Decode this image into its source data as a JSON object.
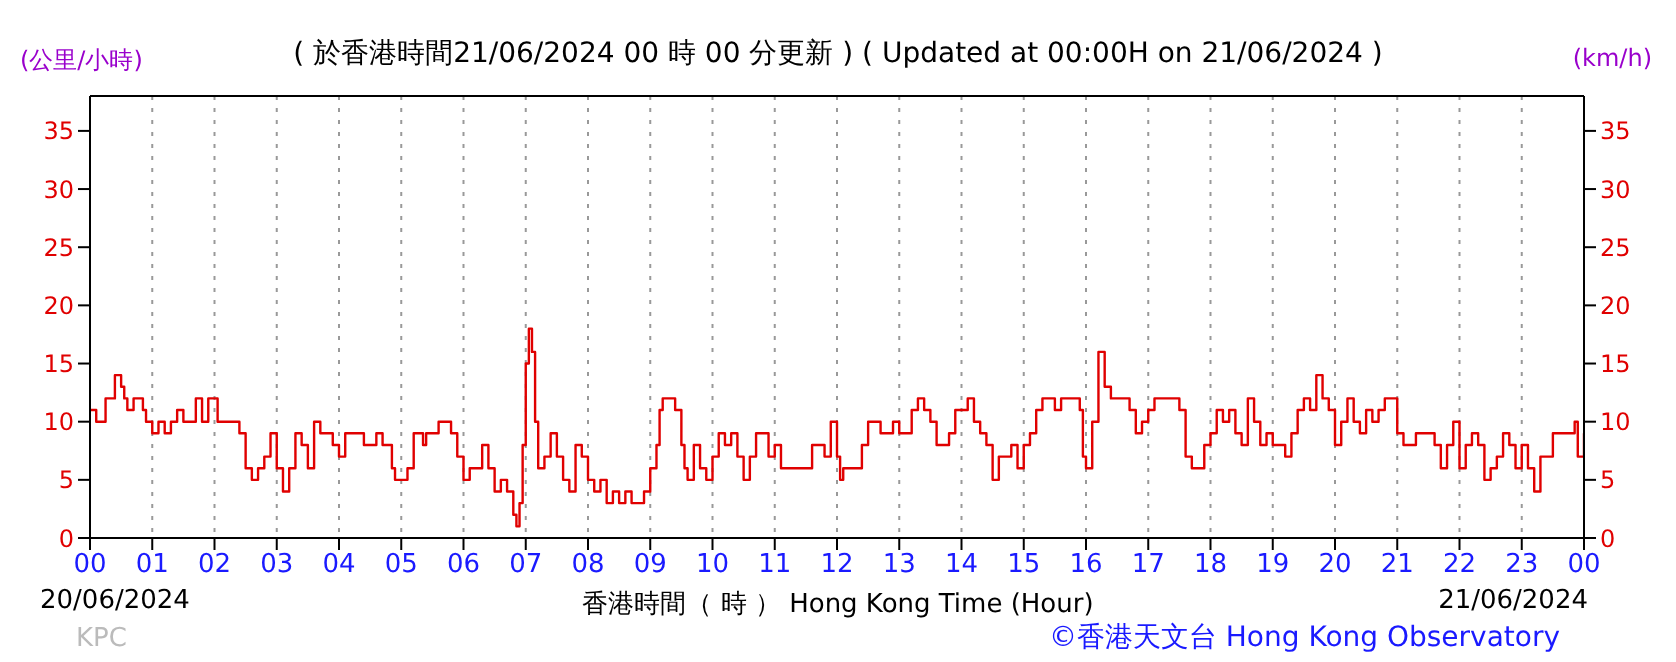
{
  "chart_data": {
    "type": "step",
    "title": "( 於香港時間21/06/2024 00 時 00 分更新 ) ( Updated at 00:00H on 21/06/2024 )",
    "xlabel": "香港時間（ 時 ） Hong Kong Time (Hour)",
    "ylabel": "(公里/小時)",
    "y2label": "(km/h)",
    "annotations": [
      "20/06/2024",
      "21/06/2024",
      "KPC",
      "©香港天文台 Hong Kong Observatory"
    ],
    "xlim": [
      0,
      24
    ],
    "xticks": [
      {
        "value": 0,
        "label": "00"
      },
      {
        "value": 1,
        "label": "01"
      },
      {
        "value": 2,
        "label": "02"
      },
      {
        "value": 3,
        "label": "03"
      },
      {
        "value": 4,
        "label": "04"
      },
      {
        "value": 5,
        "label": "05"
      },
      {
        "value": 6,
        "label": "06"
      },
      {
        "value": 7,
        "label": "07"
      },
      {
        "value": 8,
        "label": "08"
      },
      {
        "value": 9,
        "label": "09"
      },
      {
        "value": 10,
        "label": "10"
      },
      {
        "value": 11,
        "label": "11"
      },
      {
        "value": 12,
        "label": "12"
      },
      {
        "value": 13,
        "label": "13"
      },
      {
        "value": 14,
        "label": "14"
      },
      {
        "value": 15,
        "label": "15"
      },
      {
        "value": 16,
        "label": "16"
      },
      {
        "value": 17,
        "label": "17"
      },
      {
        "value": 18,
        "label": "18"
      },
      {
        "value": 19,
        "label": "19"
      },
      {
        "value": 20,
        "label": "20"
      },
      {
        "value": 21,
        "label": "21"
      },
      {
        "value": 22,
        "label": "22"
      },
      {
        "value": 23,
        "label": "23"
      },
      {
        "value": 24,
        "label": "00"
      }
    ],
    "ylim": [
      0,
      38
    ],
    "yticks": [
      0,
      5,
      10,
      15,
      20,
      25,
      30,
      35
    ],
    "y2lim": [
      0,
      38
    ],
    "y2ticks": [
      0,
      5,
      10,
      15,
      20,
      25,
      30,
      35
    ],
    "grid": true,
    "series": [
      {
        "color": "#e00000",
        "x": [
          0,
          0.1,
          0.25,
          0.35,
          0.4,
          0.5,
          0.55,
          0.6,
          0.7,
          0.85,
          0.9,
          1.0,
          1.1,
          1.2,
          1.3,
          1.4,
          1.5,
          1.6,
          1.7,
          1.8,
          1.9,
          2.0,
          2.05,
          2.2,
          2.3,
          2.4,
          2.5,
          2.6,
          2.7,
          2.8,
          2.9,
          3.0,
          3.1,
          3.2,
          3.3,
          3.4,
          3.5,
          3.6,
          3.7,
          3.9,
          4.0,
          4.1,
          4.3,
          4.4,
          4.6,
          4.7,
          4.85,
          4.9,
          5.0,
          5.1,
          5.2,
          5.35,
          5.4,
          5.5,
          5.6,
          5.7,
          5.8,
          5.9,
          6.0,
          6.1,
          6.2,
          6.3,
          6.4,
          6.5,
          6.6,
          6.7,
          6.8,
          6.85,
          6.9,
          6.95,
          7.0,
          7.05,
          7.1,
          7.15,
          7.2,
          7.3,
          7.4,
          7.5,
          7.6,
          7.7,
          7.8,
          7.9,
          8.0,
          8.1,
          8.2,
          8.3,
          8.4,
          8.5,
          8.6,
          8.7,
          8.9,
          9.0,
          9.1,
          9.15,
          9.2,
          9.3,
          9.4,
          9.5,
          9.55,
          9.6,
          9.7,
          9.8,
          9.9,
          10.0,
          10.1,
          10.2,
          10.3,
          10.4,
          10.5,
          10.6,
          10.7,
          10.8,
          10.9,
          11.0,
          11.1,
          11.3,
          11.5,
          11.6,
          11.7,
          11.8,
          11.9,
          12.0,
          12.05,
          12.1,
          12.3,
          12.4,
          12.5,
          12.7,
          12.9,
          13.0,
          13.2,
          13.3,
          13.4,
          13.5,
          13.6,
          13.7,
          13.8,
          13.9,
          14.0,
          14.1,
          14.2,
          14.3,
          14.4,
          14.5,
          14.6,
          14.7,
          14.8,
          14.9,
          15.0,
          15.1,
          15.2,
          15.3,
          15.5,
          15.6,
          15.8,
          15.9,
          15.95,
          16.0,
          16.1,
          16.2,
          16.3,
          16.4,
          16.6,
          16.7,
          16.8,
          16.9,
          17.0,
          17.1,
          17.4,
          17.5,
          17.6,
          17.7,
          17.8,
          17.9,
          18.0,
          18.1,
          18.2,
          18.3,
          18.4,
          18.5,
          18.6,
          18.7,
          18.8,
          18.9,
          19.0,
          19.1,
          19.2,
          19.3,
          19.4,
          19.5,
          19.6,
          19.7,
          19.8,
          19.9,
          20.0,
          20.1,
          20.2,
          20.3,
          20.4,
          20.5,
          20.6,
          20.7,
          20.8,
          20.9,
          21.0,
          21.1,
          21.3,
          21.5,
          21.6,
          21.7,
          21.8,
          21.9,
          22.0,
          22.1,
          22.2,
          22.3,
          22.4,
          22.5,
          22.6,
          22.7,
          22.8,
          22.9,
          23.0,
          23.1,
          23.2,
          23.3,
          23.5,
          23.8,
          23.85,
          23.9,
          24.0
        ],
        "values": [
          11,
          10,
          12,
          12,
          14,
          13,
          12,
          11,
          12,
          11,
          10,
          9,
          10,
          9,
          10,
          11,
          10,
          10,
          12,
          10,
          12,
          12,
          10,
          10,
          10,
          9,
          6,
          5,
          6,
          7,
          9,
          6,
          4,
          6,
          9,
          8,
          6,
          10,
          9,
          8,
          7,
          9,
          9,
          8,
          9,
          8,
          6,
          5,
          5,
          6,
          9,
          8,
          9,
          9,
          10,
          10,
          9,
          7,
          5,
          6,
          6,
          8,
          6,
          4,
          5,
          4,
          2,
          1,
          3,
          8,
          15,
          18,
          16,
          10,
          6,
          7,
          9,
          7,
          5,
          4,
          8,
          7,
          5,
          4,
          5,
          3,
          4,
          3,
          4,
          3,
          4,
          6,
          8,
          11,
          12,
          12,
          11,
          8,
          6,
          5,
          8,
          6,
          5,
          7,
          9,
          8,
          9,
          7,
          5,
          7,
          9,
          9,
          7,
          8,
          6,
          6,
          6,
          8,
          8,
          7,
          10,
          7,
          5,
          6,
          6,
          8,
          10,
          9,
          10,
          9,
          11,
          12,
          11,
          10,
          8,
          8,
          9,
          11,
          11,
          12,
          10,
          9,
          8,
          5,
          7,
          7,
          8,
          6,
          8,
          9,
          11,
          12,
          11,
          12,
          12,
          11,
          7,
          6,
          10,
          16,
          13,
          12,
          12,
          11,
          9,
          10,
          11,
          12,
          12,
          11,
          7,
          6,
          6,
          8,
          9,
          11,
          10,
          11,
          9,
          8,
          12,
          10,
          8,
          9,
          8,
          8,
          7,
          9,
          11,
          12,
          11,
          14,
          12,
          11,
          8,
          10,
          12,
          10,
          9,
          11,
          10,
          11,
          12,
          12,
          9,
          8,
          9,
          9,
          8,
          6,
          8,
          10,
          6,
          8,
          9,
          8,
          5,
          6,
          7,
          9,
          8,
          6,
          8,
          6,
          4,
          7,
          9,
          9,
          10,
          7,
          9
        ]
      }
    ]
  }
}
